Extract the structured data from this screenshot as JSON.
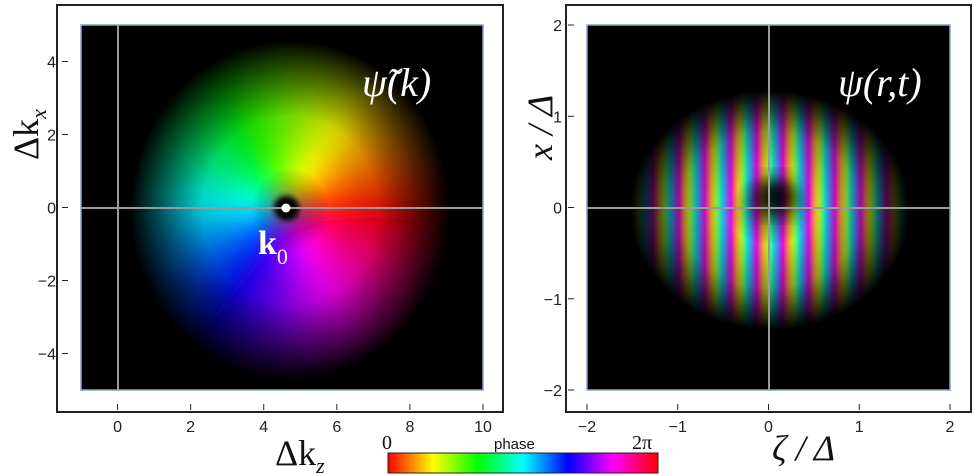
{
  "figure": {
    "left_panel": {
      "label": "ψ̃(k)",
      "xlabel": "Δk",
      "xlabel_sub": "z",
      "ylabel": "Δk",
      "ylabel_sub": "x",
      "marker_label": "k",
      "marker_sub": "0"
    },
    "right_panel": {
      "label": "ψ(r,t)",
      "xlabel": "ζ / Δ",
      "ylabel": "x / Δ"
    },
    "colorbar": {
      "title": "phase",
      "min_label": "0",
      "max_label": "2π"
    }
  },
  "chart_data": [
    {
      "type": "heatmap",
      "panel": "left",
      "title": "ψ̃(k)",
      "xlabel": "Δk_z",
      "ylabel": "Δk_x",
      "xlim": [
        -1,
        10
      ],
      "ylim": [
        -5,
        5
      ],
      "xticks": [
        "0",
        "2",
        "4",
        "6",
        "8",
        "10"
      ],
      "yticks": [
        "4",
        "2",
        "0",
        "−2",
        "−4"
      ],
      "xtick_values": [
        0,
        2,
        4,
        6,
        8,
        10
      ],
      "ytick_values": [
        4,
        2,
        0,
        -2,
        -4
      ],
      "center": [
        4.6,
        0
      ],
      "point_label": "k0",
      "grid": false,
      "encoding": "hue = phase, brightness = amplitude",
      "colors": {
        "background": "#000000",
        "crosshair": "#9a9a9a",
        "marker": "#ffffff"
      }
    },
    {
      "type": "heatmap",
      "panel": "right",
      "title": "ψ(r,t)",
      "xlabel": "ζ / Δ",
      "ylabel": "x / Δ",
      "xlim": [
        -2,
        2
      ],
      "ylim": [
        -2,
        2
      ],
      "xticks": [
        "−2",
        "−1",
        "0",
        "1",
        "2"
      ],
      "yticks": [
        "2",
        "1",
        "0",
        "−1",
        "−2"
      ],
      "xtick_values": [
        -2,
        -1,
        0,
        1,
        2
      ],
      "ytick_values": [
        2,
        1,
        0,
        -1,
        -2
      ],
      "grid": false,
      "encoding": "hue = phase, brightness = amplitude",
      "colors": {
        "background": "#000000",
        "crosshair": "#9a9a9a"
      }
    }
  ]
}
